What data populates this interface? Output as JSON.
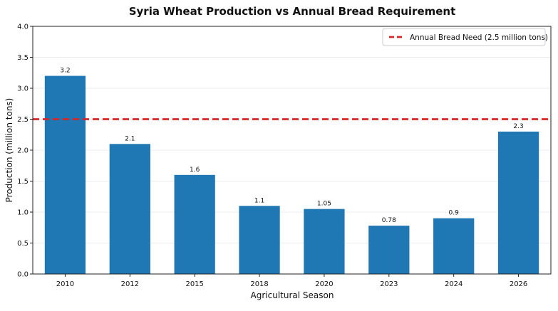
{
  "chart_data": {
    "type": "bar",
    "title": "Syria Wheat Production vs Annual Bread Requirement",
    "xlabel": "Agricultural Season",
    "ylabel": "Production (million tons)",
    "categories": [
      "2010",
      "2012",
      "2015",
      "2018",
      "2020",
      "2023",
      "2024",
      "2026"
    ],
    "series": [
      {
        "values": [
          3.2,
          2.1,
          1.6,
          1.1,
          1.05,
          0.78,
          0.9,
          2.3
        ],
        "data_labels": [
          "3.2",
          "2.1",
          "1.6",
          "1.1",
          "1.05",
          "0.78",
          "0.9",
          "2.3"
        ],
        "color": "#1f77b4"
      }
    ],
    "reference_line": {
      "name": "Annual Bread Need (2.5 million tons)",
      "value": 2.5,
      "color": "#d62728",
      "style": "dashed"
    },
    "ylim": [
      0,
      4.0
    ],
    "yticks": [
      0.0,
      0.5,
      1.0,
      1.5,
      2.0,
      2.5,
      3.0,
      3.5,
      4.0
    ],
    "ytick_labels": [
      "0.0",
      "0.5",
      "1.0",
      "1.5",
      "2.0",
      "2.5",
      "3.0",
      "3.5",
      "4.0"
    ],
    "grid": "horizontal",
    "legend_position": "top-right"
  }
}
